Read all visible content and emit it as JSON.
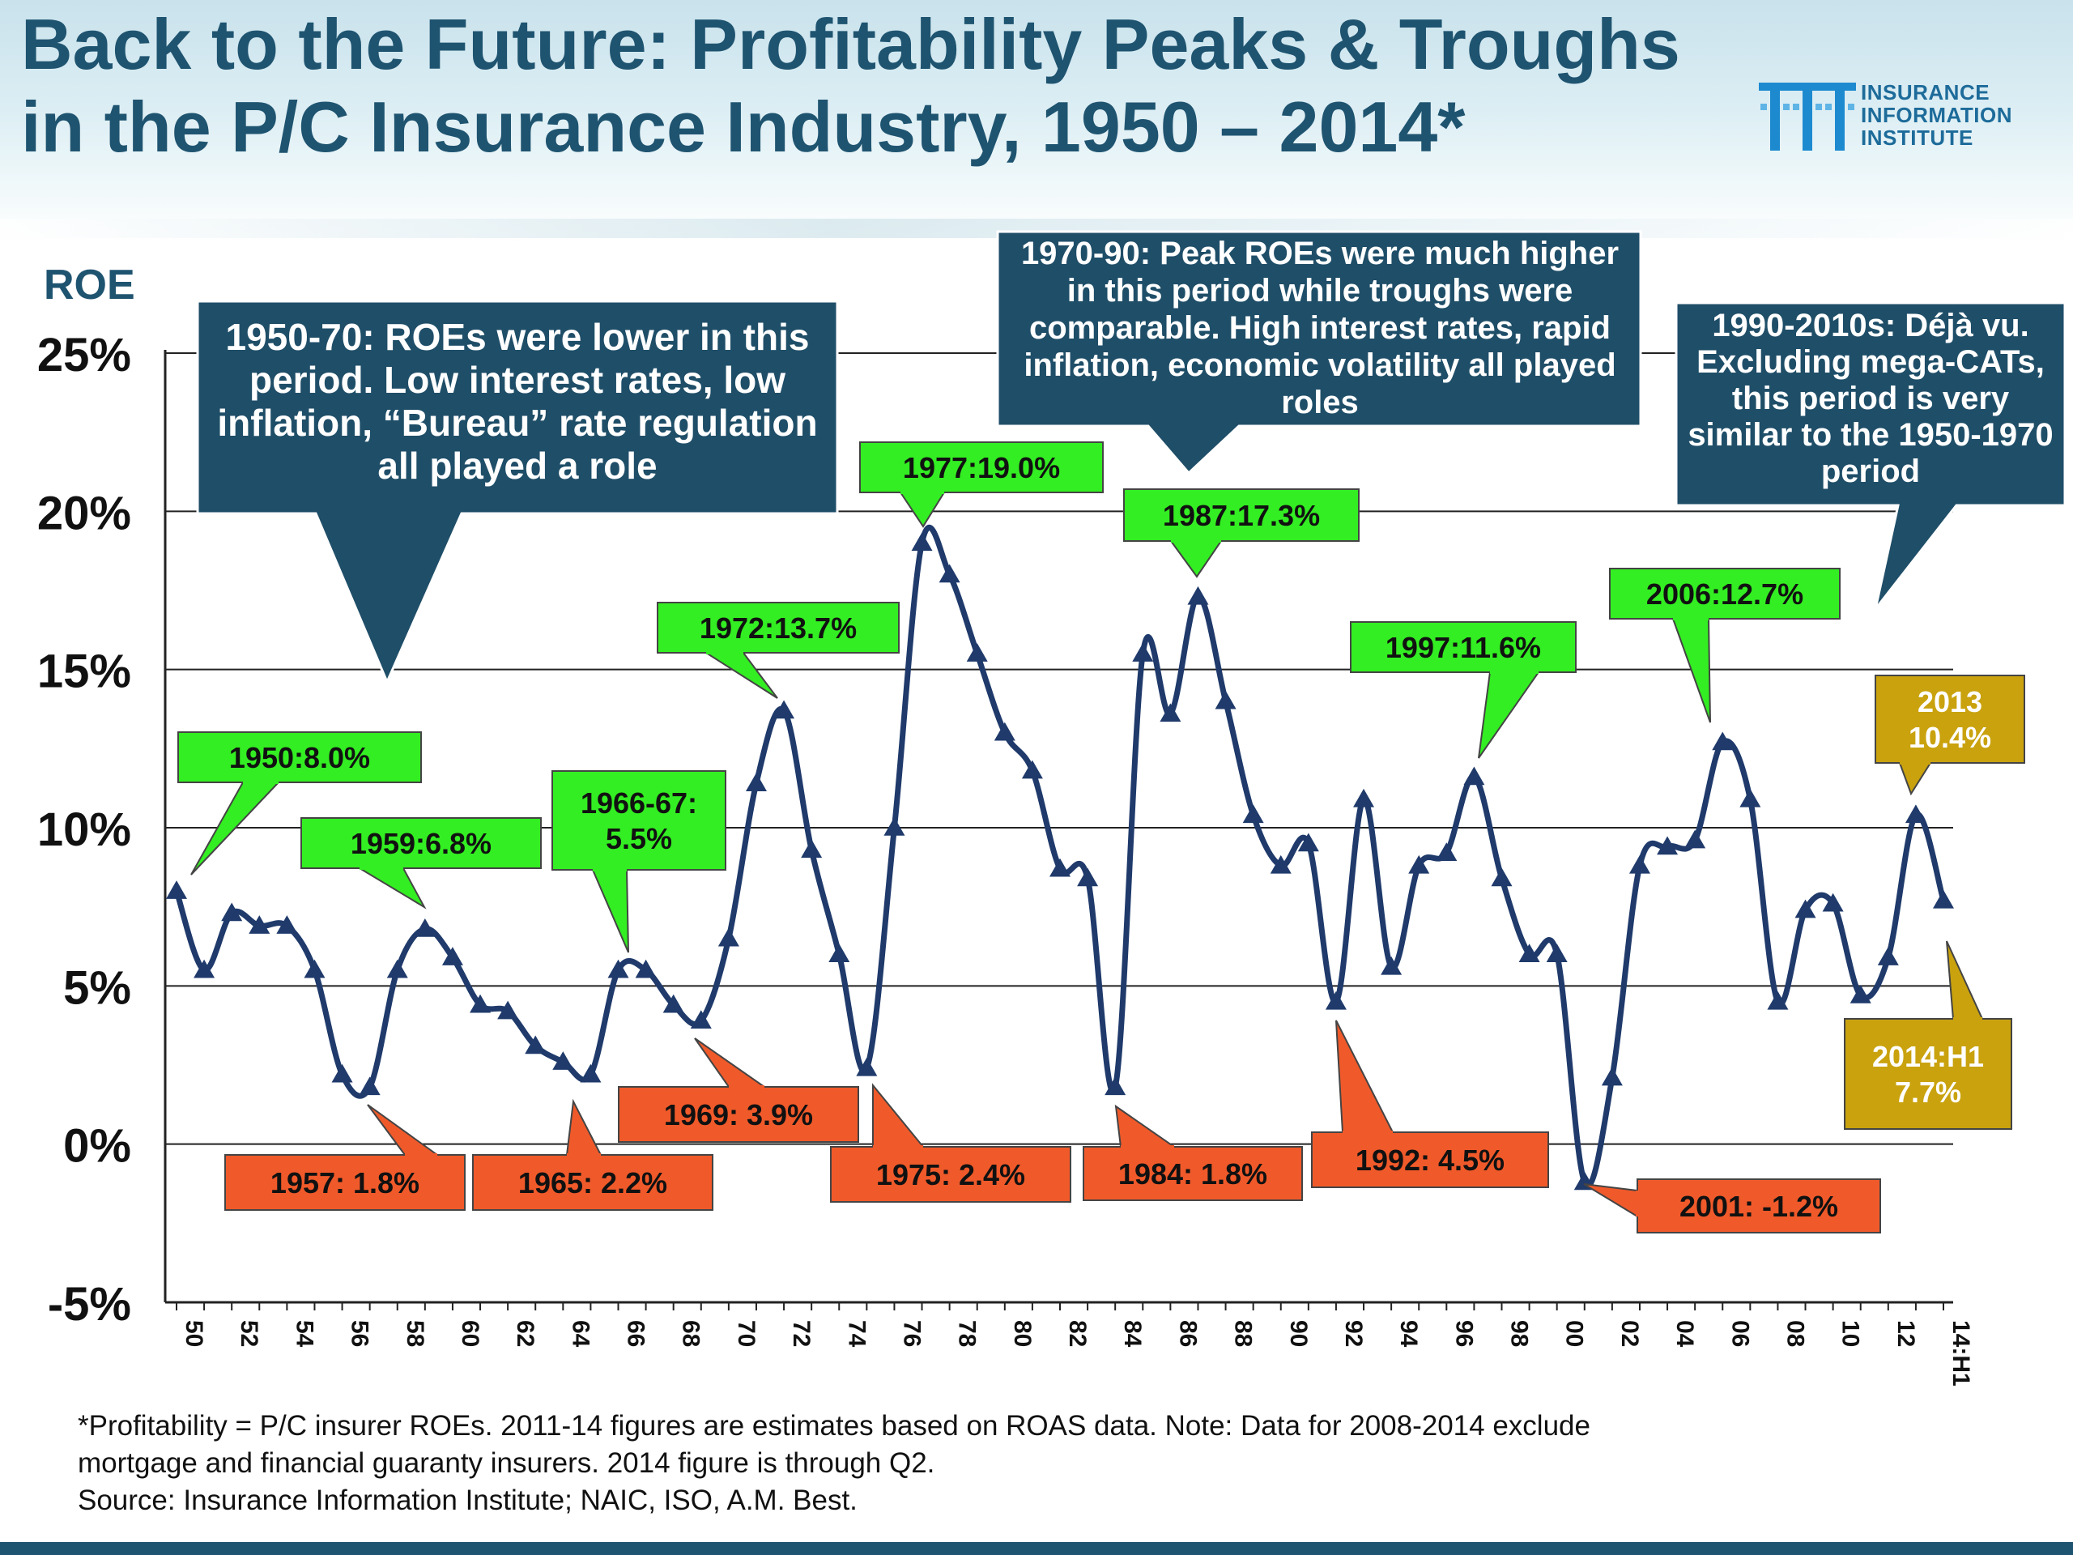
{
  "title": {
    "line1": "Back to the Future: Profitability Peaks & Troughs",
    "line2": "in the P/C Insurance Industry, 1950 – 2014*"
  },
  "logo": {
    "line1": "INSURANCE",
    "line2": "INFORMATION",
    "line3": "INSTITUTE"
  },
  "colors": {
    "line": "#1f3a6b",
    "callout": "#1f4e68",
    "peak": "#33ee22",
    "trough": "#f05a2a",
    "gold": "#c9a20e",
    "title": "#1f5470"
  },
  "callouts": {
    "c1950": "1950-70: ROEs were lower in this period.  Low interest rates, low inflation, “Bureau” rate regulation all played a role",
    "c1970": "1970-90: Peak ROEs were much higher in this period while troughs were comparable.  High interest rates, rapid inflation, economic volatility all played roles",
    "c1990": "1990-2010s: Déjà vu. Excluding mega-CATs, this period is very similar to the 1950-1970 period"
  },
  "footnote": {
    "line1": "*Profitability =  P/C insurer ROEs. 2011-14 figures are estimates based on ROAS data.  Note:  Data for 2008-2014 exclude",
    "line2": "mortgage and financial guaranty insurers. 2014 figure is through Q2.",
    "line3": "Source:  Insurance Information Institute; NAIC, ISO, A.M. Best."
  },
  "chart_data": {
    "type": "line",
    "title": "",
    "xlabel": "",
    "ylabel": "ROE",
    "ylim": [
      -5,
      25
    ],
    "y_ticks": [
      25,
      20,
      15,
      10,
      5,
      0,
      -5
    ],
    "y_tick_labels": [
      "25%",
      "20%",
      "15%",
      "10%",
      "5%",
      "0%",
      "-5%"
    ],
    "x_tick_labels": [
      "50",
      "52",
      "54",
      "56",
      "58",
      "60",
      "62",
      "64",
      "66",
      "68",
      "70",
      "72",
      "74",
      "76",
      "78",
      "80",
      "82",
      "84",
      "86",
      "88",
      "90",
      "92",
      "94",
      "96",
      "98",
      "00",
      "02",
      "04",
      "06",
      "08",
      "10",
      "12",
      "14:H1"
    ],
    "grid": "horizontal",
    "marker": "triangle",
    "x": [
      "1950",
      "1951",
      "1952",
      "1953",
      "1954",
      "1955",
      "1956",
      "1957",
      "1958",
      "1959",
      "1960",
      "1961",
      "1962",
      "1963",
      "1964",
      "1965",
      "1966",
      "1967",
      "1968",
      "1969",
      "1970",
      "1971",
      "1972",
      "1973",
      "1974",
      "1975",
      "1976",
      "1977",
      "1978",
      "1979",
      "1980",
      "1981",
      "1982",
      "1983",
      "1984",
      "1985",
      "1986",
      "1987",
      "1988",
      "1989",
      "1990",
      "1991",
      "1992",
      "1993",
      "1994",
      "1995",
      "1996",
      "1997",
      "1998",
      "1999",
      "2000",
      "2001",
      "2002",
      "2003",
      "2004",
      "2005",
      "2006",
      "2007",
      "2008",
      "2009",
      "2010",
      "2011",
      "2012",
      "2013",
      "2014:H1"
    ],
    "series": [
      {
        "values": [
          8.0,
          5.5,
          7.3,
          6.9,
          6.9,
          5.5,
          2.2,
          1.8,
          5.5,
          6.8,
          5.9,
          4.4,
          4.2,
          3.1,
          2.6,
          2.2,
          5.5,
          5.5,
          4.4,
          3.9,
          6.5,
          11.4,
          13.7,
          9.3,
          6.0,
          2.4,
          10.0,
          19.0,
          18.0,
          15.5,
          13.0,
          11.8,
          8.7,
          8.4,
          1.8,
          15.5,
          13.6,
          17.3,
          14.0,
          10.4,
          8.8,
          9.5,
          4.5,
          10.9,
          5.6,
          8.8,
          9.2,
          11.6,
          8.4,
          6.0,
          6.0,
          -1.2,
          2.1,
          8.8,
          9.4,
          9.6,
          12.7,
          10.9,
          4.5,
          7.4,
          7.6,
          4.7,
          5.9,
          10.4,
          7.7
        ]
      }
    ],
    "annotations": [
      {
        "label": "1950:8.0%",
        "year": 1950,
        "kind": "peak"
      },
      {
        "label": "1959:6.8%",
        "year": 1959,
        "kind": "peak"
      },
      {
        "label": "1966-67:\n5.5%",
        "year": 1966.5,
        "kind": "peak"
      },
      {
        "label": "1972:13.7%",
        "year": 1972,
        "kind": "peak"
      },
      {
        "label": "1977:19.0%",
        "year": 1977,
        "kind": "peak"
      },
      {
        "label": "1987:17.3%",
        "year": 1987,
        "kind": "peak"
      },
      {
        "label": "1997:11.6%",
        "year": 1997,
        "kind": "peak"
      },
      {
        "label": "2006:12.7%",
        "year": 2006,
        "kind": "peak"
      },
      {
        "label": "2013\n10.4%",
        "year": 2013,
        "kind": "latest"
      },
      {
        "label": "2014:H1\n7.7%",
        "year": 2014,
        "kind": "latest"
      },
      {
        "label": "1957: 1.8%",
        "year": 1957,
        "kind": "trough"
      },
      {
        "label": "1965: 2.2%",
        "year": 1965,
        "kind": "trough"
      },
      {
        "label": "1969: 3.9%",
        "year": 1969,
        "kind": "trough"
      },
      {
        "label": "1975: 2.4%",
        "year": 1975,
        "kind": "trough"
      },
      {
        "label": "1984: 1.8%",
        "year": 1984,
        "kind": "trough"
      },
      {
        "label": "1992: 4.5%",
        "year": 1992,
        "kind": "trough"
      },
      {
        "label": "2001: -1.2%",
        "year": 2001,
        "kind": "trough"
      }
    ]
  }
}
